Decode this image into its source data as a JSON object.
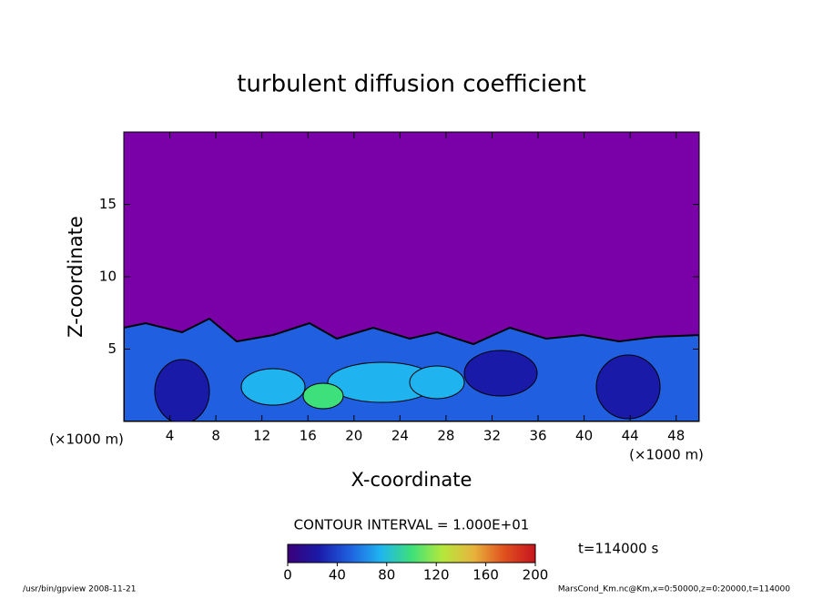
{
  "chart_data": {
    "type": "contour",
    "title": "turbulent diffusion coefficient",
    "xlabel": "X-coordinate",
    "ylabel": "Z-coordinate",
    "xunit": "(×1000 m)",
    "xlim": [
      0,
      50
    ],
    "xticks": [
      4,
      8,
      12,
      16,
      20,
      24,
      28,
      32,
      36,
      40,
      44,
      48
    ],
    "ylim": [
      0,
      20
    ],
    "yticks": [
      5,
      10,
      15
    ],
    "contour_interval": "CONTOUR INTERVAL = 1.000E+01",
    "time_label": "t=114000 s",
    "colorbar": {
      "lim": [
        0,
        200
      ],
      "ticks": [
        0,
        40,
        80,
        120,
        160,
        200
      ],
      "colors": [
        "#3a007a",
        "#1a1aa8",
        "#1f5fe0",
        "#1fb4f0",
        "#3de07a",
        "#b4e83c",
        "#e8b43c",
        "#e0501e",
        "#c8141e"
      ]
    },
    "footer_left": "/usr/bin/gpview   2008-11-21",
    "footer_right": "MarsCond_Km.nc@Km,x=0:50000,z=0:20000,t=114000"
  }
}
